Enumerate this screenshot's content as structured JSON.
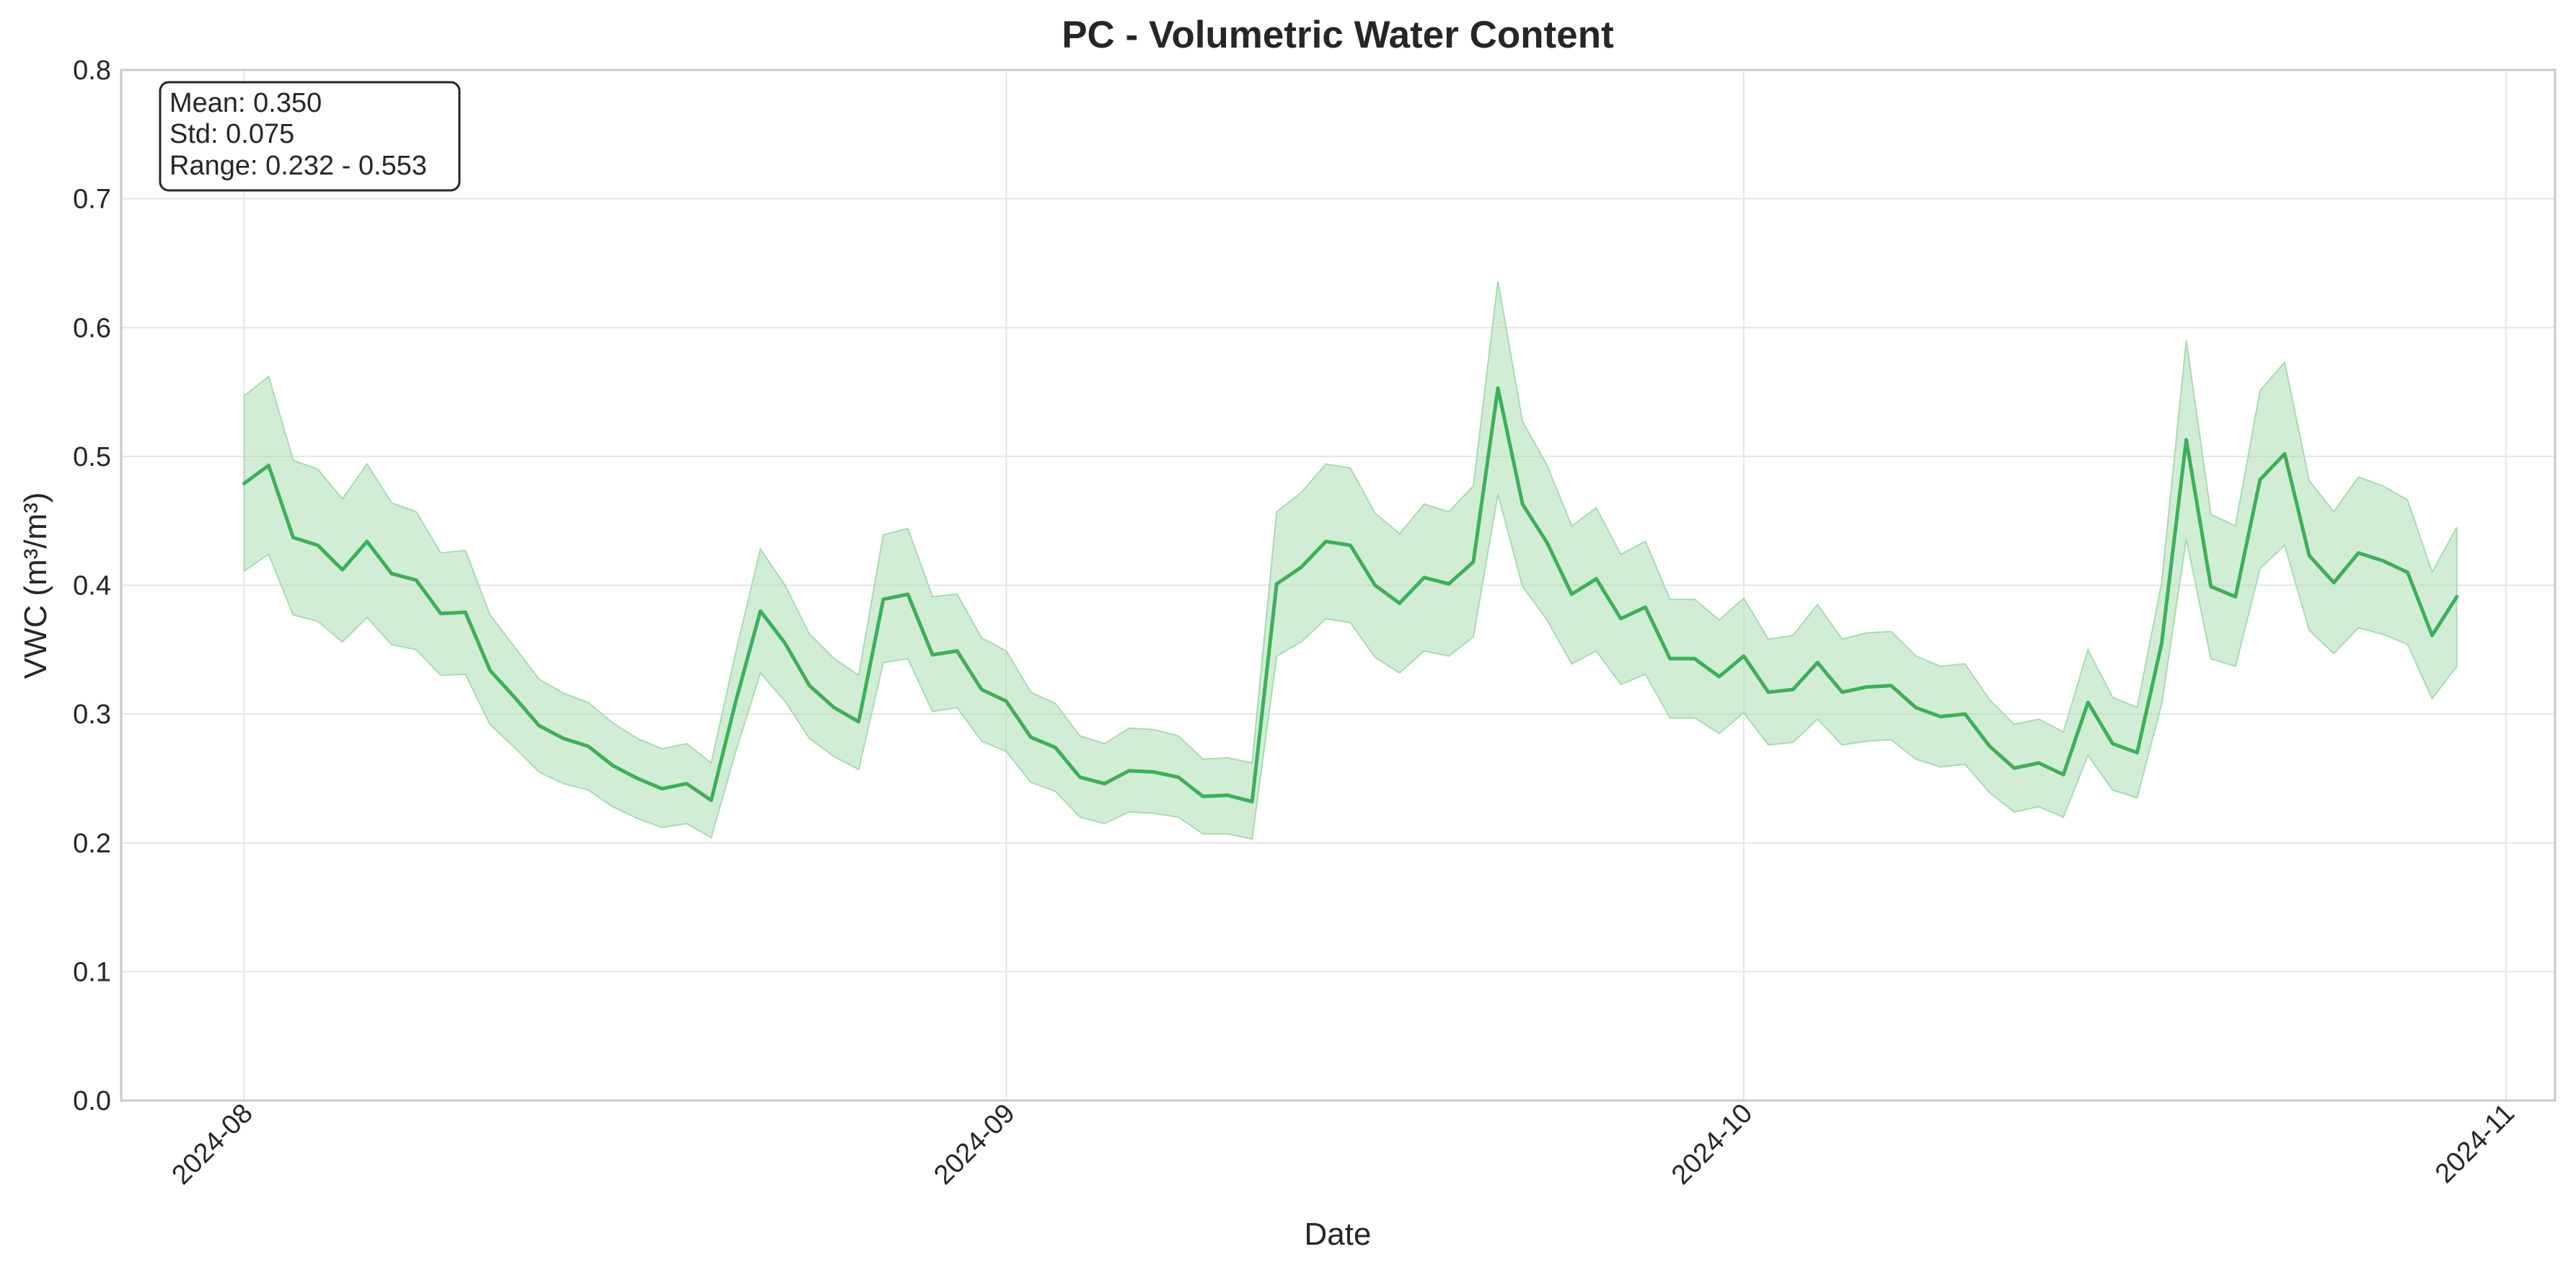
{
  "chart_data": {
    "type": "line",
    "title": "PC - Volumetric Water Content",
    "xlabel": "Date",
    "ylabel": "VWC (m³/m³)",
    "ylim": [
      0,
      0.8
    ],
    "yticks": [
      "0.0",
      "0.1",
      "0.2",
      "0.3",
      "0.4",
      "0.5",
      "0.6",
      "0.7",
      "0.8"
    ],
    "xticks": [
      {
        "date": "2024-08-01",
        "label": "2024-08"
      },
      {
        "date": "2024-09-01",
        "label": "2024-09"
      },
      {
        "date": "2024-10-01",
        "label": "2024-10"
      },
      {
        "date": "2024-11-01",
        "label": "2024-11"
      }
    ],
    "xlim": [
      "2024-07-27",
      "2024-11-03"
    ],
    "grid": true,
    "stats_box": {
      "mean": "Mean: 0.350",
      "std": "Std: 0.075",
      "range": "Range: 0.232 - 0.553"
    },
    "colors": {
      "line": "#3cb05a",
      "band": "#a6dcae",
      "grid": "#e6e6e6",
      "axis": "#c8c8c8"
    },
    "series": [
      {
        "x": [
          "2024-08-01",
          "2024-08-02",
          "2024-08-03",
          "2024-08-04",
          "2024-08-05",
          "2024-08-06",
          "2024-08-07",
          "2024-08-08",
          "2024-08-09",
          "2024-08-10",
          "2024-08-11",
          "2024-08-12",
          "2024-08-13",
          "2024-08-14",
          "2024-08-15",
          "2024-08-16",
          "2024-08-17",
          "2024-08-18",
          "2024-08-19",
          "2024-08-20",
          "2024-08-21",
          "2024-08-22",
          "2024-08-23",
          "2024-08-24",
          "2024-08-25",
          "2024-08-26",
          "2024-08-27",
          "2024-08-28",
          "2024-08-29",
          "2024-08-30",
          "2024-08-31",
          "2024-09-01",
          "2024-09-02",
          "2024-09-03",
          "2024-09-04",
          "2024-09-05",
          "2024-09-06",
          "2024-09-07",
          "2024-09-08",
          "2024-09-09",
          "2024-09-10",
          "2024-09-11",
          "2024-09-12",
          "2024-09-13",
          "2024-09-14",
          "2024-09-15",
          "2024-09-16",
          "2024-09-17",
          "2024-09-18",
          "2024-09-19",
          "2024-09-20",
          "2024-09-21",
          "2024-09-22",
          "2024-09-23",
          "2024-09-24",
          "2024-09-25",
          "2024-09-26",
          "2024-09-27",
          "2024-09-28",
          "2024-09-29",
          "2024-09-30",
          "2024-10-01",
          "2024-10-02",
          "2024-10-03",
          "2024-10-04",
          "2024-10-05",
          "2024-10-06",
          "2024-10-07",
          "2024-10-08",
          "2024-10-09",
          "2024-10-10",
          "2024-10-11",
          "2024-10-12",
          "2024-10-13",
          "2024-10-14",
          "2024-10-15",
          "2024-10-16",
          "2024-10-17",
          "2024-10-18",
          "2024-10-19",
          "2024-10-20",
          "2024-10-21",
          "2024-10-22",
          "2024-10-23",
          "2024-10-24",
          "2024-10-25",
          "2024-10-26",
          "2024-10-27",
          "2024-10-28",
          "2024-10-29",
          "2024-10-30"
        ],
        "values": [
          0.479,
          0.493,
          0.437,
          0.431,
          0.412,
          0.434,
          0.409,
          0.404,
          0.378,
          0.379,
          0.334,
          0.313,
          0.291,
          0.281,
          0.275,
          0.26,
          0.25,
          0.242,
          0.246,
          0.233,
          0.31,
          0.38,
          0.355,
          0.322,
          0.305,
          0.294,
          0.389,
          0.393,
          0.346,
          0.349,
          0.319,
          0.31,
          0.282,
          0.274,
          0.251,
          0.246,
          0.256,
          0.255,
          0.251,
          0.236,
          0.237,
          0.232,
          0.401,
          0.414,
          0.434,
          0.431,
          0.4,
          0.386,
          0.406,
          0.401,
          0.418,
          0.553,
          0.463,
          0.433,
          0.393,
          0.405,
          0.374,
          0.383,
          0.343,
          0.343,
          0.329,
          0.345,
          0.317,
          0.319,
          0.34,
          0.317,
          0.321,
          0.322,
          0.305,
          0.298,
          0.3,
          0.275,
          0.258,
          0.262,
          0.253,
          0.309,
          0.277,
          0.27,
          0.355,
          0.513,
          0.399,
          0.391,
          0.482,
          0.502,
          0.423,
          0.402,
          0.425,
          0.419,
          0.41,
          0.361,
          0.391
        ],
        "upper": [
          0.547,
          0.562,
          0.497,
          0.49,
          0.467,
          0.494,
          0.464,
          0.457,
          0.425,
          0.427,
          0.377,
          0.352,
          0.327,
          0.316,
          0.309,
          0.293,
          0.281,
          0.273,
          0.277,
          0.262,
          0.348,
          0.428,
          0.4,
          0.362,
          0.343,
          0.33,
          0.439,
          0.444,
          0.391,
          0.393,
          0.359,
          0.349,
          0.317,
          0.308,
          0.283,
          0.277,
          0.289,
          0.288,
          0.283,
          0.265,
          0.266,
          0.262,
          0.457,
          0.472,
          0.494,
          0.491,
          0.456,
          0.44,
          0.463,
          0.457,
          0.477,
          0.636,
          0.527,
          0.493,
          0.446,
          0.46,
          0.424,
          0.434,
          0.389,
          0.389,
          0.373,
          0.39,
          0.358,
          0.361,
          0.385,
          0.358,
          0.363,
          0.364,
          0.345,
          0.337,
          0.339,
          0.311,
          0.292,
          0.296,
          0.286,
          0.35,
          0.313,
          0.305,
          0.402,
          0.59,
          0.455,
          0.446,
          0.551,
          0.573,
          0.481,
          0.457,
          0.484,
          0.477,
          0.466,
          0.41,
          0.445
        ],
        "lower": [
          0.411,
          0.424,
          0.377,
          0.372,
          0.356,
          0.375,
          0.354,
          0.35,
          0.33,
          0.331,
          0.292,
          0.274,
          0.255,
          0.246,
          0.241,
          0.228,
          0.219,
          0.212,
          0.215,
          0.204,
          0.271,
          0.332,
          0.31,
          0.281,
          0.267,
          0.257,
          0.34,
          0.343,
          0.302,
          0.305,
          0.279,
          0.271,
          0.247,
          0.24,
          0.22,
          0.215,
          0.224,
          0.223,
          0.22,
          0.207,
          0.207,
          0.203,
          0.345,
          0.356,
          0.374,
          0.371,
          0.344,
          0.332,
          0.349,
          0.345,
          0.36,
          0.471,
          0.399,
          0.373,
          0.339,
          0.349,
          0.323,
          0.331,
          0.297,
          0.297,
          0.285,
          0.301,
          0.276,
          0.278,
          0.296,
          0.276,
          0.279,
          0.28,
          0.265,
          0.259,
          0.261,
          0.239,
          0.224,
          0.228,
          0.22,
          0.268,
          0.241,
          0.235,
          0.308,
          0.436,
          0.343,
          0.337,
          0.413,
          0.431,
          0.365,
          0.347,
          0.367,
          0.362,
          0.354,
          0.312,
          0.337
        ]
      }
    ]
  }
}
